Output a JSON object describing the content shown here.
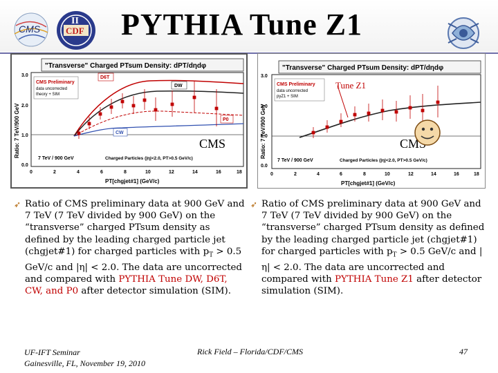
{
  "title": "PYTHIA Tune Z1",
  "left_plot": {
    "header": "\"Transverse\" Charged PTsum Density: dPT/dηdφ",
    "legend_title": "CMS Preliminary",
    "legend_line1": "data uncorrected",
    "legend_line2": "theory + SIM",
    "ylabel": "Ratio: 7 TeV/900 GeV",
    "xlabel": "PT[chgjet#1] (GeV/c)",
    "energy_label": "7 TeV / 900 GeV",
    "charged_label": "Charged Particles (|η|<2.0, PT>0.5 GeV/c)",
    "tune_labels": [
      "D6T",
      "DW",
      "P0",
      "CW"
    ],
    "overlay": "CMS"
  },
  "right_plot": {
    "header": "\"Transverse\" Charged PTsum Density: dPT/dηdφ",
    "legend_title": "CMS Preliminary",
    "legend_line1": "data uncorrected",
    "legend_line2": "pyZ1 + SIM",
    "ylabel": "Ratio: 7 TeV/900 GeV",
    "xlabel": "PT[chgjet#1] (GeV/c)",
    "energy_label": "7 TeV / 900 GeV",
    "charged_label": "Charged Particles (|η|<2.0, PT>0.5 GeV/c)",
    "tune_label": "Tune Z1",
    "overlay": "CMS"
  },
  "axes": {
    "x_ticks": [
      "0",
      "2",
      "4",
      "6",
      "8",
      "10",
      "12",
      "14",
      "16",
      "18"
    ],
    "y_ticks": [
      "0.0",
      "1.0",
      "2.0",
      "3.0"
    ]
  },
  "bullet_left": {
    "t1": "Ratio of CMS preliminary data at 900 GeV and 7 TeV (7 TeV divided by 900 GeV) on the “transverse” charged PTsum density as defined by the leading charged particle jet (chgjet#1) for charged particles with p",
    "sub": "T",
    "t2": " > 0.5 GeV/c and |η| < 2.0. The data are uncorrected and compared with ",
    "red": "PYTHIA Tune DW, D6T, CW, and P0",
    "t3": " after detector simulation (SIM)."
  },
  "bullet_right": {
    "t1": "Ratio of CMS preliminary data at 900 GeV and 7 TeV (7 TeV divided by 900 GeV) on the “transverse” charged PTsum density as defined by the leading charged particle jet (chgjet#1) for charged particles with p",
    "sub": "T",
    "t2": " > 0.5 GeV/c and |η| < 2.0. The data are uncorrected and compared with ",
    "red": "PYTHIA Tune Z1",
    "t3": " after detector simulation (SIM)."
  },
  "footer": {
    "left1": "UF-IFT Seminar",
    "left2": "Gainesville, FL, November 19, 2010",
    "center": "Rick Field – Florida/CDF/CMS",
    "page": "47"
  },
  "colors": {
    "accent": "#c00000",
    "rule": "#6d6da8"
  }
}
